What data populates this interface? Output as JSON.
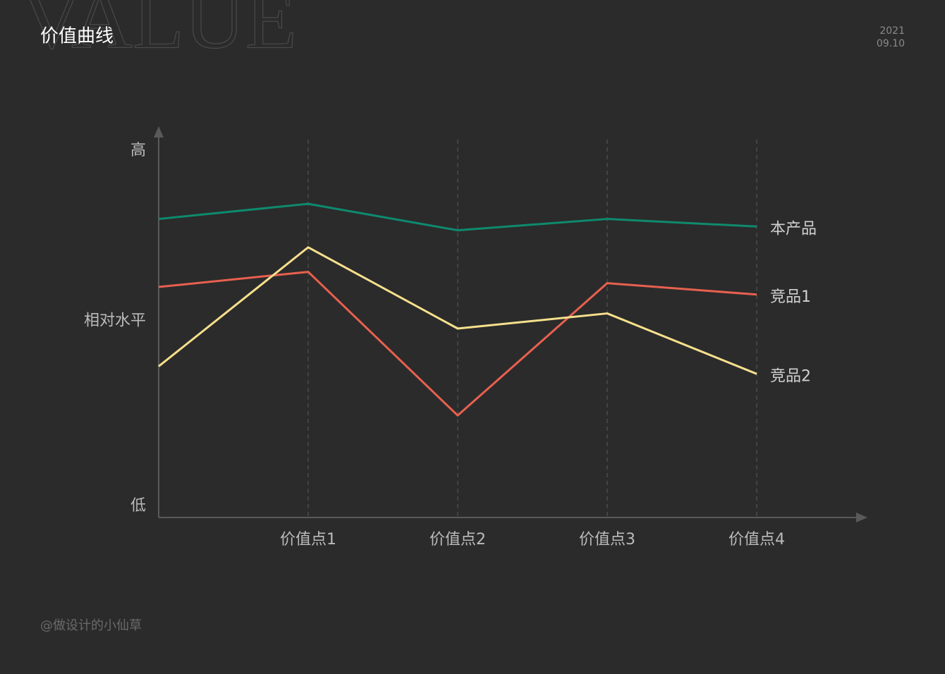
{
  "header": {
    "title": "价值曲线",
    "watermark": "VALUE",
    "year": "2021",
    "date": "09.10"
  },
  "footer": "@做设计的小仙草",
  "chart_data": {
    "type": "line",
    "categories": [
      null,
      "价值点1",
      "价值点2",
      "价值点3",
      "价值点4"
    ],
    "ylim": [
      0,
      100
    ],
    "yticks": [
      {
        "value": 97,
        "label": "高"
      },
      {
        "value": 52,
        "label": "相对水平"
      },
      {
        "value": 3,
        "label": "低"
      }
    ],
    "series": [
      {
        "name": "本产品",
        "color": "#0e8a6e",
        "values": [
          79,
          83,
          76,
          79,
          77
        ]
      },
      {
        "name": "竞品1",
        "color": "#e8604f",
        "values": [
          61,
          65,
          27,
          62,
          59
        ]
      },
      {
        "name": "竞品2",
        "color": "#f7e08c",
        "values": [
          40,
          71.5,
          50,
          54,
          38
        ]
      }
    ]
  }
}
